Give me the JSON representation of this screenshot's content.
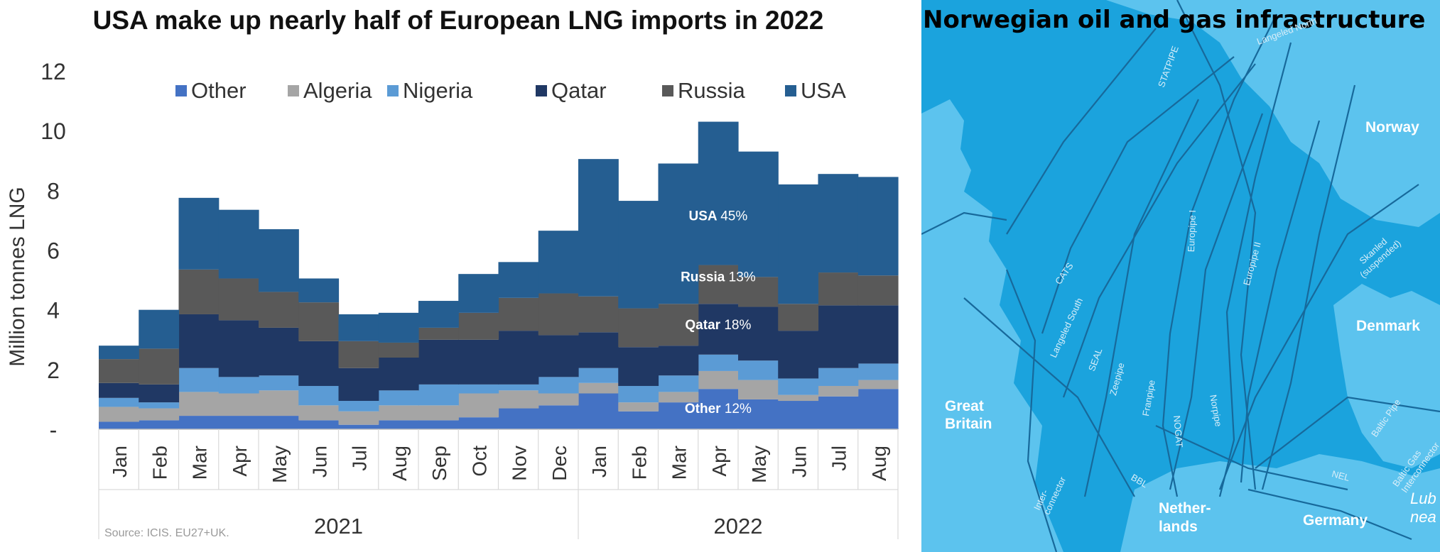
{
  "chart_data": {
    "type": "area",
    "title": "USA make up nearly half of European LNG imports in 2022",
    "ylabel": "Million tonnes LNG",
    "xlabel": "",
    "ylim": [
      0,
      12
    ],
    "yticks": [
      "-",
      "2",
      "4",
      "6",
      "8",
      "10",
      "12"
    ],
    "categories": [
      "Jan",
      "Feb",
      "Mar",
      "Apr",
      "May",
      "Jun",
      "Jul",
      "Aug",
      "Sep",
      "Oct",
      "Nov",
      "Dec",
      "Jan",
      "Feb",
      "Mar",
      "Apr",
      "May",
      "Jun",
      "Jul",
      "Aug"
    ],
    "year_groups": [
      {
        "label": "2021",
        "start": 0,
        "end": 11
      },
      {
        "label": "2022",
        "start": 12,
        "end": 19
      }
    ],
    "legend_position": "top",
    "series": [
      {
        "name": "Other",
        "color": "#4472c4",
        "values": [
          0.25,
          0.3,
          0.45,
          0.45,
          0.45,
          0.3,
          0.15,
          0.3,
          0.3,
          0.4,
          0.7,
          0.8,
          1.2,
          0.6,
          0.9,
          1.35,
          1.0,
          0.95,
          1.1,
          1.35
        ]
      },
      {
        "name": "Algeria",
        "color": "#a5a5a5",
        "values": [
          0.5,
          0.4,
          0.8,
          0.75,
          0.85,
          0.5,
          0.45,
          0.5,
          0.5,
          0.8,
          0.6,
          0.4,
          0.35,
          0.3,
          0.35,
          0.6,
          0.65,
          0.2,
          0.35,
          0.3
        ]
      },
      {
        "name": "Nigeria",
        "color": "#5b9bd5",
        "values": [
          0.3,
          0.2,
          0.8,
          0.55,
          0.5,
          0.65,
          0.35,
          0.5,
          0.7,
          0.3,
          0.2,
          0.55,
          0.5,
          0.55,
          0.55,
          0.55,
          0.65,
          0.55,
          0.6,
          0.55
        ]
      },
      {
        "name": "Qatar",
        "color": "#203864",
        "values": [
          0.5,
          0.6,
          1.8,
          1.9,
          1.6,
          1.5,
          1.1,
          1.1,
          1.5,
          1.5,
          1.8,
          1.4,
          1.2,
          1.3,
          1.0,
          1.7,
          1.8,
          1.6,
          2.1,
          1.95
        ]
      },
      {
        "name": "Russia",
        "color": "#595959",
        "values": [
          0.8,
          1.2,
          1.5,
          1.4,
          1.2,
          1.3,
          0.9,
          0.5,
          0.4,
          0.9,
          1.1,
          1.4,
          1.2,
          1.3,
          1.4,
          1.3,
          1.0,
          0.9,
          1.1,
          1.0
        ]
      },
      {
        "name": "USA",
        "color": "#255e91",
        "values": [
          0.45,
          1.3,
          2.4,
          2.3,
          2.1,
          0.8,
          0.9,
          1.0,
          0.9,
          1.3,
          1.2,
          2.1,
          4.6,
          3.6,
          4.7,
          4.8,
          4.2,
          4.0,
          3.3,
          3.3
        ]
      }
    ],
    "annotations": [
      {
        "name": "USA",
        "pct": "45%",
        "x_index": 15,
        "y": 7.0
      },
      {
        "name": "Russia",
        "pct": "13%",
        "x_index": 15,
        "y": 4.95
      },
      {
        "name": "Qatar",
        "pct": "18%",
        "x_index": 15,
        "y": 3.35
      },
      {
        "name": "Other",
        "pct": "12%",
        "x_index": 15,
        "y": 0.55
      }
    ],
    "source": "Source: ICIS. EU27+UK.",
    "grid": false
  },
  "map": {
    "title": "Norwegian oil and gas infrastructure",
    "countries": [
      "Norway",
      "Denmark",
      "Great Britain",
      "Netherlands",
      "Germany"
    ],
    "netherlands_lines": [
      "Nether-",
      "lands"
    ],
    "great_britain_lines": [
      "Great",
      "Britain"
    ],
    "sea_partial": [
      "Lub",
      "nea"
    ],
    "pipelines": [
      "STATPIPE",
      "Langeled North",
      "CATS",
      "Langeled South",
      "SEAL",
      "Zeepipe",
      "Franpipe",
      "NOGAT",
      "Norpipe",
      "Europipe I",
      "Europipe II",
      "Skanled (suspended)",
      "Baltic Pipe",
      "Inter-connector",
      "BBL",
      "NEL",
      "Baltic Gas Interconnector"
    ],
    "colors": {
      "sea": "#1ba3dd",
      "land": "#5cc3ee",
      "pipeline": "#17699b"
    }
  }
}
